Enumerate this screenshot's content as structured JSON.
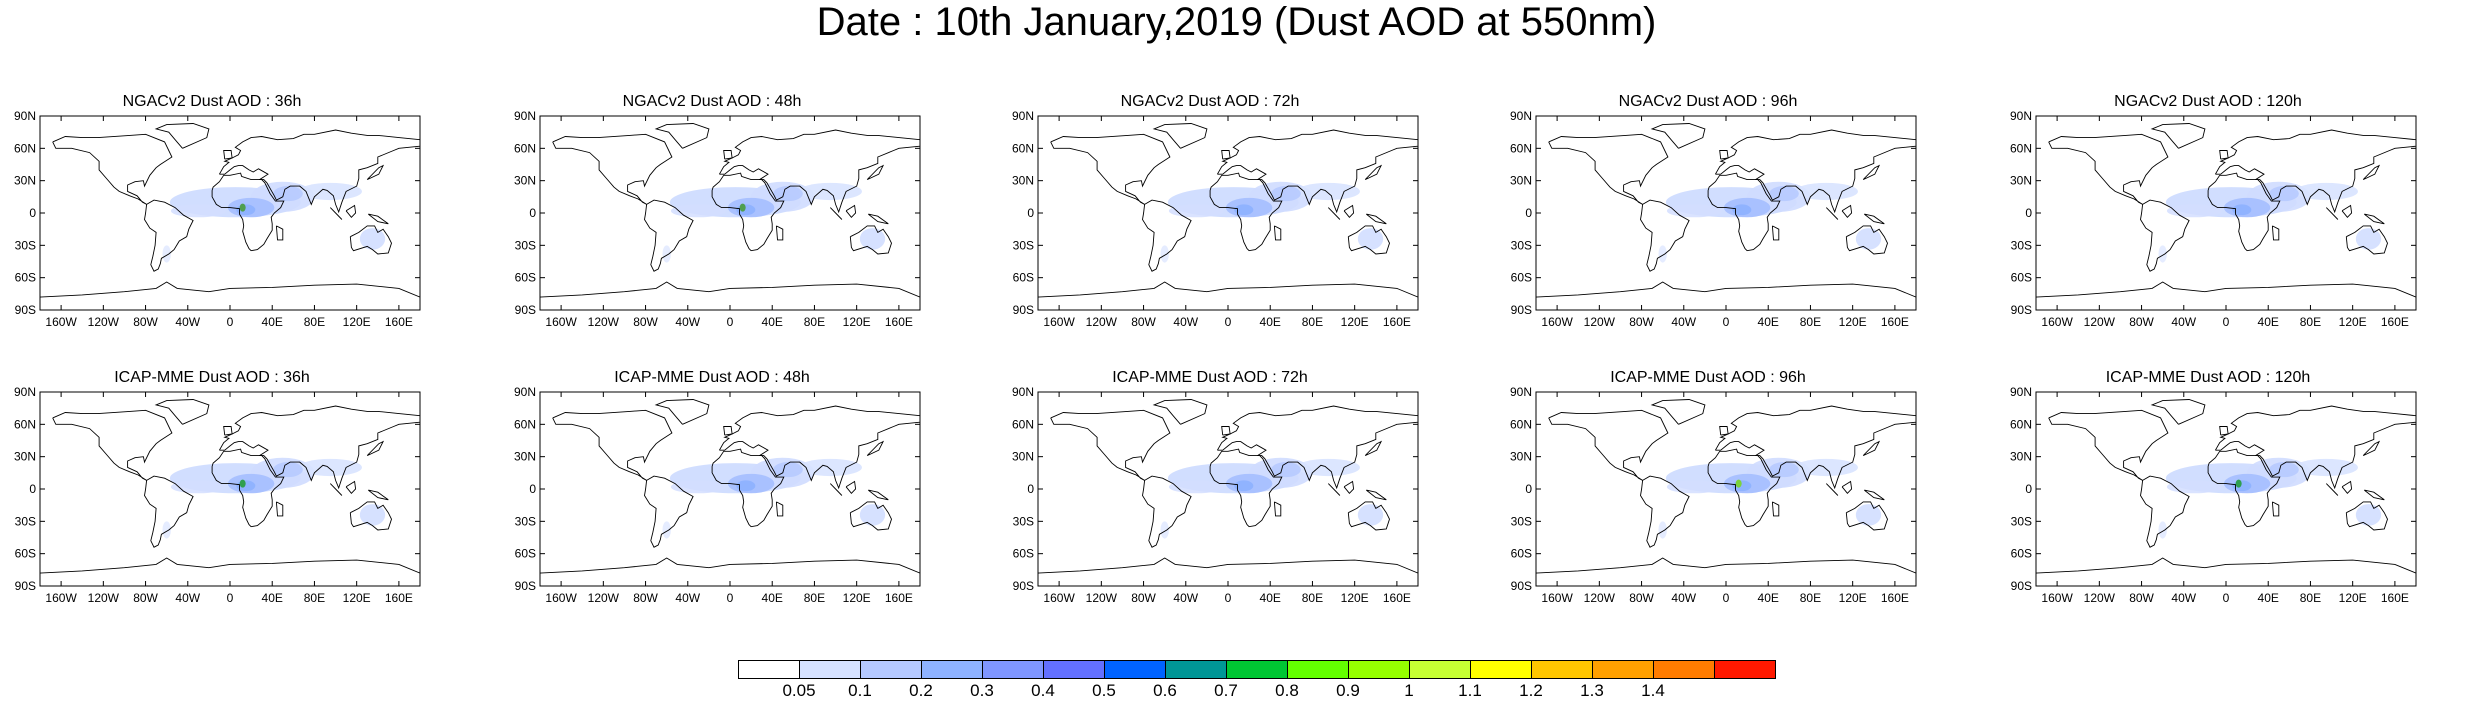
{
  "title": "Date : 10th January,2019 (Dust AOD at 550nm)",
  "lat_labels": [
    "90N",
    "60N",
    "30N",
    "0",
    "30S",
    "60S",
    "90S"
  ],
  "lon_labels": [
    "160W",
    "120W",
    "80W",
    "40W",
    "0",
    "40E",
    "80E",
    "120E",
    "160E"
  ],
  "panels": [
    {
      "title": "NGACv2 Dust AOD : 36h",
      "peak": "#4f9e4f"
    },
    {
      "title": "NGACv2 Dust AOD : 48h",
      "peak": "#4f9e4f"
    },
    {
      "title": "NGACv2 Dust AOD : 72h",
      "peak": null
    },
    {
      "title": "NGACv2 Dust AOD : 96h",
      "peak": null
    },
    {
      "title": "NGACv2 Dust AOD : 120h",
      "peak": null
    },
    {
      "title": "ICAP-MME Dust AOD : 36h",
      "peak": "#2f9f4f"
    },
    {
      "title": "ICAP-MME Dust AOD : 48h",
      "peak": null
    },
    {
      "title": "ICAP-MME Dust AOD : 72h",
      "peak": null
    },
    {
      "title": "ICAP-MME Dust AOD : 96h",
      "peak": "#7cd33a"
    },
    {
      "title": "ICAP-MME Dust AOD : 120h",
      "peak": "#2f9f4f"
    }
  ],
  "colorbar": {
    "labels": [
      "0.05",
      "0.1",
      "0.2",
      "0.3",
      "0.4",
      "0.5",
      "0.6",
      "0.7",
      "0.8",
      "0.9",
      "1",
      "1.1",
      "1.2",
      "1.3",
      "1.4"
    ],
    "colors": [
      "#ffffff",
      "#d6e2ff",
      "#b5c9ff",
      "#8eb2ff",
      "#7f96ff",
      "#6370ff",
      "#0063ff",
      "#009696",
      "#00c633",
      "#63ff00",
      "#96ff00",
      "#c6ff33",
      "#ffff00",
      "#ffc600",
      "#ffa000",
      "#ff7c00",
      "#ff1900"
    ]
  }
}
